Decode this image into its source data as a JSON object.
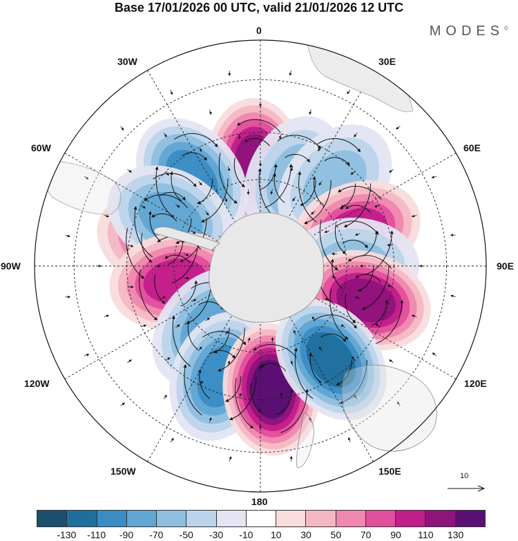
{
  "title": "Base 17/01/2026 00 UTC, valid 21/01/2026 12 UTC",
  "brand": "MODES",
  "brand_mark": "©",
  "longitude_labels": {
    "lon_0": "0",
    "lon_30e": "30E",
    "lon_60e": "60E",
    "lon_90e": "90E",
    "lon_120e": "120E",
    "lon_150e": "150E",
    "lon_180": "180",
    "lon_150w": "150W",
    "lon_120w": "120W",
    "lon_90w": "90W",
    "lon_60w": "60W",
    "lon_30w": "30W"
  },
  "reference_vector": {
    "magnitude": "10"
  },
  "colorbar": {
    "colors": [
      "#1b4f6e",
      "#1f6f9e",
      "#3a8cc4",
      "#61a6d4",
      "#8fbfe0",
      "#bcd4ea",
      "#e3e5f2",
      "#ffffff",
      "#f9dcdd",
      "#f5b7c4",
      "#ef87ae",
      "#e04f9c",
      "#c11e8a",
      "#8e137a",
      "#5a0f73"
    ],
    "ticks": [
      "-130",
      "-110",
      "-90",
      "-70",
      "-50",
      "-30",
      "-10",
      "10",
      "30",
      "50",
      "70",
      "90",
      "110",
      "130"
    ]
  },
  "map": {
    "projection": "south polar stereographic",
    "anomaly_centers": [
      {
        "sign": "positive",
        "value": 110,
        "lat": -55,
        "lon": -3
      },
      {
        "sign": "negative",
        "value": -90,
        "lat": -52,
        "lon": -38
      },
      {
        "sign": "negative",
        "value": -50,
        "lat": -58,
        "lon": 22
      },
      {
        "sign": "negative",
        "value": -50,
        "lat": -52,
        "lon": 42
      },
      {
        "sign": "positive",
        "value": 70,
        "lat": -55,
        "lon": -75
      },
      {
        "sign": "positive",
        "value": 90,
        "lat": -55,
        "lon": 70
      },
      {
        "sign": "negative",
        "value": -70,
        "lat": -55,
        "lon": -62
      },
      {
        "sign": "negative",
        "value": -50,
        "lat": -58,
        "lon": 90
      },
      {
        "sign": "positive",
        "value": 90,
        "lat": -60,
        "lon": -100
      },
      {
        "sign": "positive",
        "value": 110,
        "lat": -52,
        "lon": 108
      },
      {
        "sign": "negative",
        "value": -70,
        "lat": -62,
        "lon": -140
      },
      {
        "sign": "negative",
        "value": -90,
        "lat": -50,
        "lon": -160
      },
      {
        "sign": "positive",
        "value": 130,
        "lat": -48,
        "lon": 175
      },
      {
        "sign": "negative",
        "value": -110,
        "lat": -50,
        "lon": 143
      }
    ]
  }
}
